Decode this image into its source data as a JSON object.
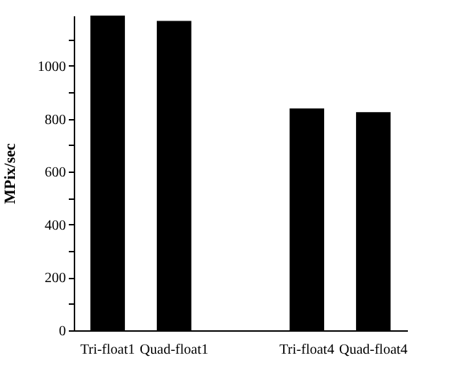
{
  "chart_data": {
    "type": "bar",
    "ylabel": "MPix/sec",
    "categories": [
      "Tri-float1",
      "Quad-float1",
      null,
      "Tri-float4",
      "Quad-float4"
    ],
    "values": [
      1190,
      1170,
      null,
      839,
      825
    ],
    "color": "#000000",
    "ylim": [
      0,
      1190
    ],
    "yticks": [
      0,
      {
        "value": 100,
        "label": null
      },
      200,
      {
        "value": 300,
        "label": null
      },
      400,
      {
        "value": 500,
        "label": null
      },
      600,
      {
        "value": 700,
        "label": null
      },
      800,
      {
        "value": 900,
        "label": null
      },
      1000,
      {
        "value": 1100,
        "label": null
      }
    ],
    "grid": false
  }
}
